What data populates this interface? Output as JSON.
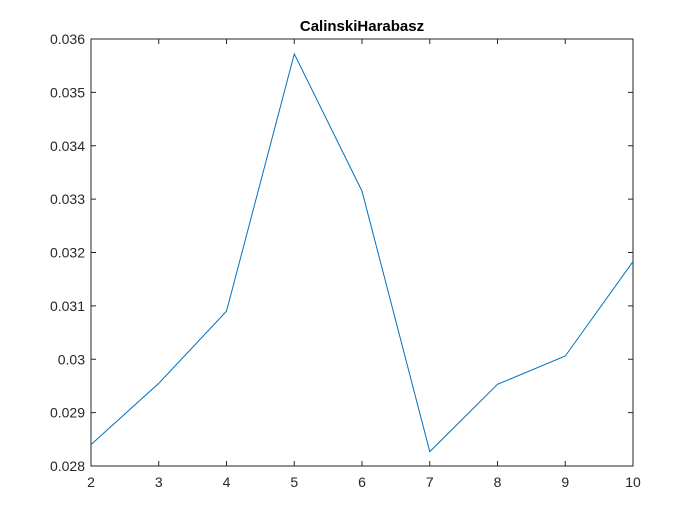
{
  "chart_data": {
    "type": "line",
    "title": "CalinskiHarabasz",
    "xlabel": "",
    "ylabel": "",
    "x": [
      2,
      3,
      4,
      5,
      6,
      7,
      8,
      9,
      10
    ],
    "series": [
      {
        "values": [
          0.0284,
          0.02955,
          0.0309,
          0.03572,
          0.03315,
          0.02827,
          0.02953,
          0.03006,
          0.03183
        ]
      }
    ],
    "xlim": [
      2,
      10
    ],
    "ylim": [
      0.028,
      0.036
    ],
    "xticks": [
      "2",
      "3",
      "4",
      "5",
      "6",
      "7",
      "8",
      "9",
      "10"
    ],
    "yticks": [
      "0.028",
      "0.029",
      "0.03",
      "0.031",
      "0.032",
      "0.033",
      "0.034",
      "0.035",
      "0.036"
    ],
    "grid": false,
    "legend": "none",
    "colors": {
      "line": "#0072BD",
      "axes": "#262626"
    }
  }
}
